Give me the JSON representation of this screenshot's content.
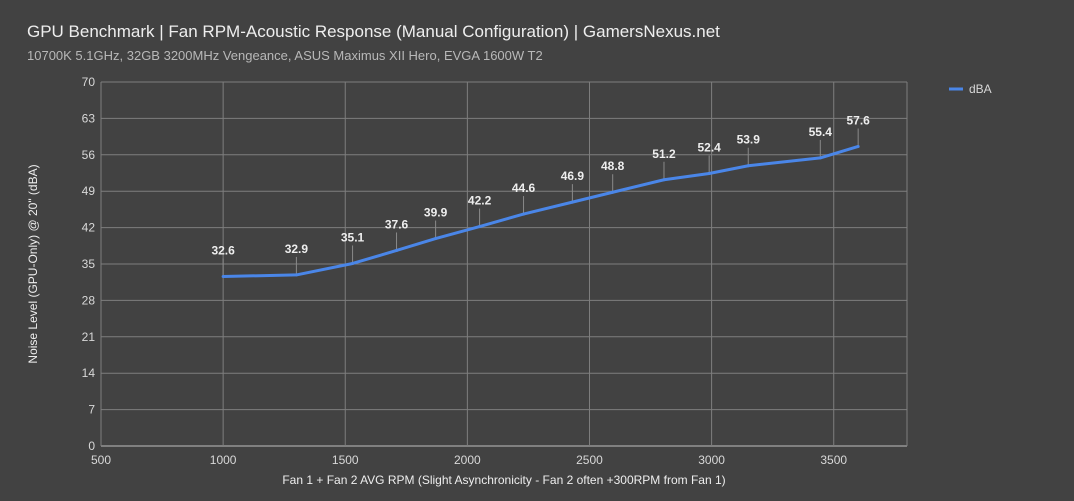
{
  "chart_data": {
    "type": "line",
    "title": "GPU Benchmark | Fan RPM-Acoustic Response (Manual Configuration) | GamersNexus.net",
    "subtitle": "10700K 5.1GHz, 32GB 3200MHz Vengeance, ASUS Maximus XII Hero, EVGA 1600W T2",
    "xlabel": "Fan 1 + Fan 2 AVG RPM (Slight Asynchronicity - Fan 2 often +300RPM from Fan 1)",
    "ylabel": "Noise Level (GPU-Only) @ 20\" (dBA)",
    "xlim": [
      500,
      3800
    ],
    "ylim": [
      0,
      70
    ],
    "xticks": [
      500,
      1000,
      1500,
      2000,
      2500,
      3000,
      3500
    ],
    "yticks": [
      0,
      7,
      14,
      21,
      28,
      35,
      42,
      49,
      56,
      63,
      70
    ],
    "grid": true,
    "legend": "top-right",
    "series": [
      {
        "name": "dBA",
        "color": "#4a86e8",
        "x": [
          1000,
          1300,
          1530,
          1710,
          1870,
          2050,
          2230,
          2430,
          2595,
          2805,
          2990,
          3150,
          3445,
          3600
        ],
        "y": [
          32.6,
          32.9,
          35.1,
          37.6,
          39.9,
          42.2,
          44.6,
          46.9,
          48.8,
          51.2,
          52.4,
          53.9,
          55.4,
          57.6
        ]
      }
    ]
  }
}
